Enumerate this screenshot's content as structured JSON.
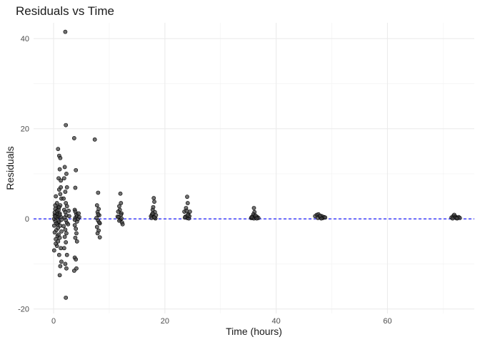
{
  "chart_data": {
    "type": "scatter",
    "title": "Residuals vs Time",
    "xlabel": "Time (hours)",
    "ylabel": "Residuals",
    "xlim": [
      -3.6,
      75.6
    ],
    "ylim": [
      -21,
      43.5
    ],
    "xticks": [
      0,
      20,
      40,
      60
    ],
    "yticks": [
      -20,
      0,
      20,
      40
    ],
    "reference_line": {
      "y": 0,
      "style": "dashed",
      "color": "#0000ff"
    },
    "grid": true,
    "point_color": "#404040",
    "point_edge_color": "#000000",
    "points": [
      {
        "x": 0.1,
        "y": -1.5
      },
      {
        "x": 0.2,
        "y": 0.8
      },
      {
        "x": 0.3,
        "y": 2.2
      },
      {
        "x": 0.4,
        "y": -4.5
      },
      {
        "x": 0.5,
        "y": 1.0
      },
      {
        "x": 0.6,
        "y": -6.0
      },
      {
        "x": 0.1,
        "y": -7.0
      },
      {
        "x": 0.3,
        "y": 3.0
      },
      {
        "x": 0.5,
        "y": -2.5
      },
      {
        "x": 0.7,
        "y": 0.3
      },
      {
        "x": 0.4,
        "y": 5.0
      },
      {
        "x": 0.2,
        "y": -3.0
      },
      {
        "x": 0.6,
        "y": 1.8
      },
      {
        "x": 0.8,
        "y": -0.8
      },
      {
        "x": 0.9,
        "y": 2.6
      },
      {
        "x": 0.3,
        "y": -0.5
      },
      {
        "x": 0.5,
        "y": 0.2
      },
      {
        "x": 0.7,
        "y": -1.2
      },
      {
        "x": 0.2,
        "y": 1.4
      },
      {
        "x": 0.8,
        "y": -2.0
      },
      {
        "x": 0.9,
        "y": 0.6
      },
      {
        "x": 0.4,
        "y": -5.5
      },
      {
        "x": 0.6,
        "y": 3.5
      },
      {
        "x": 0.1,
        "y": 0.0
      },
      {
        "x": 0.7,
        "y": -3.8
      },
      {
        "x": 0.5,
        "y": -1.0
      },
      {
        "x": 0.3,
        "y": 0.5
      },
      {
        "x": 0.8,
        "y": 1.1
      },
      {
        "x": 0.8,
        "y": 15.5
      },
      {
        "x": 1.0,
        "y": 14.0
      },
      {
        "x": 1.2,
        "y": 13.5
      },
      {
        "x": 1.1,
        "y": 11.0
      },
      {
        "x": 0.9,
        "y": 9.0
      },
      {
        "x": 1.3,
        "y": 8.5
      },
      {
        "x": 1.0,
        "y": 6.5
      },
      {
        "x": 1.4,
        "y": 4.5
      },
      {
        "x": 1.2,
        "y": 3.0
      },
      {
        "x": 0.9,
        "y": 2.0
      },
      {
        "x": 1.1,
        "y": 1.2
      },
      {
        "x": 1.3,
        "y": 0.4
      },
      {
        "x": 1.0,
        "y": -0.6
      },
      {
        "x": 1.2,
        "y": -1.5
      },
      {
        "x": 1.4,
        "y": -2.8
      },
      {
        "x": 0.9,
        "y": -3.5
      },
      {
        "x": 1.1,
        "y": -4.2
      },
      {
        "x": 1.3,
        "y": -6.5
      },
      {
        "x": 1.0,
        "y": -8.0
      },
      {
        "x": 1.2,
        "y": -10.5
      },
      {
        "x": 1.1,
        "y": -12.5
      },
      {
        "x": 1.4,
        "y": -9.5
      },
      {
        "x": 0.8,
        "y": -5.0
      },
      {
        "x": 1.2,
        "y": 5.5
      },
      {
        "x": 1.3,
        "y": 7.0
      },
      {
        "x": 1.0,
        "y": 2.6
      },
      {
        "x": 1.4,
        "y": -0.2
      },
      {
        "x": 1.1,
        "y": 0.9
      },
      {
        "x": 2.1,
        "y": 41.5
      },
      {
        "x": 2.2,
        "y": 20.8
      },
      {
        "x": 2.0,
        "y": 11.5
      },
      {
        "x": 2.3,
        "y": 10.0
      },
      {
        "x": 1.9,
        "y": 9.0
      },
      {
        "x": 2.4,
        "y": 7.0
      },
      {
        "x": 2.1,
        "y": 6.0
      },
      {
        "x": 1.8,
        "y": 4.5
      },
      {
        "x": 2.2,
        "y": 3.5
      },
      {
        "x": 2.4,
        "y": 2.8
      },
      {
        "x": 1.9,
        "y": 2.0
      },
      {
        "x": 2.1,
        "y": 1.5
      },
      {
        "x": 2.3,
        "y": 0.8
      },
      {
        "x": 2.0,
        "y": 0.3
      },
      {
        "x": 2.2,
        "y": -0.3
      },
      {
        "x": 2.4,
        "y": -0.9
      },
      {
        "x": 1.8,
        "y": -1.6
      },
      {
        "x": 2.1,
        "y": -2.4
      },
      {
        "x": 2.3,
        "y": -3.2
      },
      {
        "x": 2.0,
        "y": -4.0
      },
      {
        "x": 2.2,
        "y": -5.2
      },
      {
        "x": 1.9,
        "y": -6.5
      },
      {
        "x": 2.4,
        "y": -8.0
      },
      {
        "x": 2.1,
        "y": -10.0
      },
      {
        "x": 2.3,
        "y": -11.0
      },
      {
        "x": 2.2,
        "y": -17.5
      },
      {
        "x": 2.6,
        "y": -1.2
      },
      {
        "x": 2.8,
        "y": 0.6
      },
      {
        "x": 2.7,
        "y": 1.8
      },
      {
        "x": 3.7,
        "y": 17.9
      },
      {
        "x": 4.0,
        "y": 10.8
      },
      {
        "x": 3.9,
        "y": 6.9
      },
      {
        "x": 3.8,
        "y": 2.0
      },
      {
        "x": 4.1,
        "y": 1.0
      },
      {
        "x": 3.9,
        "y": 0.2
      },
      {
        "x": 4.2,
        "y": -0.6
      },
      {
        "x": 3.8,
        "y": -1.4
      },
      {
        "x": 4.0,
        "y": -2.2
      },
      {
        "x": 4.1,
        "y": -3.2
      },
      {
        "x": 3.9,
        "y": -4.2
      },
      {
        "x": 4.2,
        "y": -5.0
      },
      {
        "x": 3.8,
        "y": -8.6
      },
      {
        "x": 4.0,
        "y": -9.0
      },
      {
        "x": 3.7,
        "y": -11.5
      },
      {
        "x": 4.1,
        "y": -11.0
      },
      {
        "x": 3.9,
        "y": 1.6
      },
      {
        "x": 4.2,
        "y": 0.6
      },
      {
        "x": 3.8,
        "y": -0.2
      },
      {
        "x": 4.4,
        "y": 0.0
      },
      {
        "x": 4.5,
        "y": 1.2
      },
      {
        "x": 4.6,
        "y": 0.4
      },
      {
        "x": 7.4,
        "y": 17.6
      },
      {
        "x": 7.8,
        "y": 3.0
      },
      {
        "x": 8.0,
        "y": 5.8
      },
      {
        "x": 8.1,
        "y": 2.2
      },
      {
        "x": 7.9,
        "y": 1.5
      },
      {
        "x": 8.2,
        "y": 0.8
      },
      {
        "x": 7.7,
        "y": 0.2
      },
      {
        "x": 8.0,
        "y": -0.4
      },
      {
        "x": 8.3,
        "y": -1.0
      },
      {
        "x": 7.8,
        "y": -1.8
      },
      {
        "x": 8.1,
        "y": -2.6
      },
      {
        "x": 7.9,
        "y": -3.2
      },
      {
        "x": 8.3,
        "y": -4.1
      },
      {
        "x": 8.0,
        "y": 1.0
      },
      {
        "x": 8.2,
        "y": -0.8
      },
      {
        "x": 11.5,
        "y": 0.5
      },
      {
        "x": 11.8,
        "y": 2.8
      },
      {
        "x": 12.0,
        "y": 5.6
      },
      {
        "x": 12.1,
        "y": 3.5
      },
      {
        "x": 11.9,
        "y": 2.0
      },
      {
        "x": 12.2,
        "y": 1.2
      },
      {
        "x": 11.7,
        "y": 0.4
      },
      {
        "x": 12.0,
        "y": -0.2
      },
      {
        "x": 12.3,
        "y": -0.8
      },
      {
        "x": 11.8,
        "y": -0.4
      },
      {
        "x": 12.1,
        "y": 0.9
      },
      {
        "x": 12.4,
        "y": -1.2
      },
      {
        "x": 11.6,
        "y": 1.6
      },
      {
        "x": 12.2,
        "y": 0.1
      },
      {
        "x": 17.5,
        "y": 0.6
      },
      {
        "x": 17.8,
        "y": 2.0
      },
      {
        "x": 18.0,
        "y": 4.6
      },
      {
        "x": 18.1,
        "y": 3.8
      },
      {
        "x": 17.9,
        "y": 2.6
      },
      {
        "x": 18.2,
        "y": 1.5
      },
      {
        "x": 17.7,
        "y": 1.0
      },
      {
        "x": 18.0,
        "y": 0.4
      },
      {
        "x": 18.3,
        "y": 0.1
      },
      {
        "x": 17.6,
        "y": 0.2
      },
      {
        "x": 18.4,
        "y": 0.8
      },
      {
        "x": 18.1,
        "y": 0.3
      },
      {
        "x": 17.8,
        "y": 1.2
      },
      {
        "x": 23.5,
        "y": 1.6
      },
      {
        "x": 23.8,
        "y": 2.4
      },
      {
        "x": 24.0,
        "y": 4.9
      },
      {
        "x": 24.1,
        "y": 3.5
      },
      {
        "x": 23.9,
        "y": 1.8
      },
      {
        "x": 24.2,
        "y": 1.0
      },
      {
        "x": 23.7,
        "y": 0.5
      },
      {
        "x": 24.0,
        "y": 0.2
      },
      {
        "x": 24.3,
        "y": 0.1
      },
      {
        "x": 24.5,
        "y": 1.6
      },
      {
        "x": 24.4,
        "y": 0.6
      },
      {
        "x": 23.6,
        "y": 0.3
      },
      {
        "x": 24.1,
        "y": 0.8
      },
      {
        "x": 35.5,
        "y": 0.2
      },
      {
        "x": 35.8,
        "y": 0.6
      },
      {
        "x": 36.0,
        "y": 2.4
      },
      {
        "x": 36.1,
        "y": 1.5
      },
      {
        "x": 35.9,
        "y": 1.0
      },
      {
        "x": 36.2,
        "y": 0.5
      },
      {
        "x": 35.7,
        "y": 0.2
      },
      {
        "x": 36.0,
        "y": 0.1
      },
      {
        "x": 36.4,
        "y": 0.3
      },
      {
        "x": 36.6,
        "y": 0.4
      },
      {
        "x": 36.8,
        "y": 0.2
      },
      {
        "x": 36.3,
        "y": 0.7
      },
      {
        "x": 35.6,
        "y": 0.4
      },
      {
        "x": 36.5,
        "y": 0.1
      },
      {
        "x": 47.0,
        "y": 0.6
      },
      {
        "x": 47.3,
        "y": 0.9
      },
      {
        "x": 47.6,
        "y": 1.0
      },
      {
        "x": 47.8,
        "y": 0.5
      },
      {
        "x": 48.0,
        "y": 0.3
      },
      {
        "x": 48.2,
        "y": 0.6
      },
      {
        "x": 48.4,
        "y": 0.2
      },
      {
        "x": 48.6,
        "y": 0.4
      },
      {
        "x": 48.8,
        "y": 0.3
      },
      {
        "x": 47.5,
        "y": 0.2
      },
      {
        "x": 48.1,
        "y": 0.1
      },
      {
        "x": 47.9,
        "y": 0.7
      },
      {
        "x": 71.5,
        "y": 0.3
      },
      {
        "x": 71.8,
        "y": 0.6
      },
      {
        "x": 72.0,
        "y": 0.9
      },
      {
        "x": 72.2,
        "y": 0.5
      },
      {
        "x": 72.4,
        "y": 0.3
      },
      {
        "x": 72.6,
        "y": 0.2
      },
      {
        "x": 72.8,
        "y": 0.4
      },
      {
        "x": 73.0,
        "y": 0.2
      },
      {
        "x": 71.7,
        "y": 0.1
      },
      {
        "x": 72.3,
        "y": 0.2
      },
      {
        "x": 72.5,
        "y": 0.1
      }
    ]
  }
}
